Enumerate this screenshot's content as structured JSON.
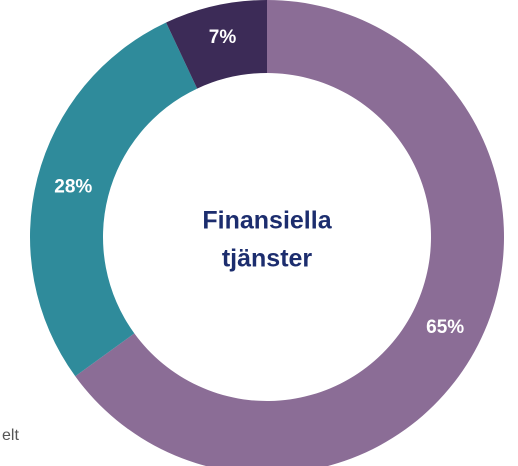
{
  "chart_data": {
    "type": "donut",
    "title_lines": [
      "Finansiella",
      "tjänster"
    ],
    "categories": [
      null,
      null,
      null
    ],
    "values": [
      65,
      28,
      7
    ],
    "value_labels": [
      "65%",
      "28%",
      "7%"
    ],
    "colors": [
      "#8b6d96",
      "#2f8b9b",
      "#3c2b57"
    ],
    "caption": "elt"
  }
}
